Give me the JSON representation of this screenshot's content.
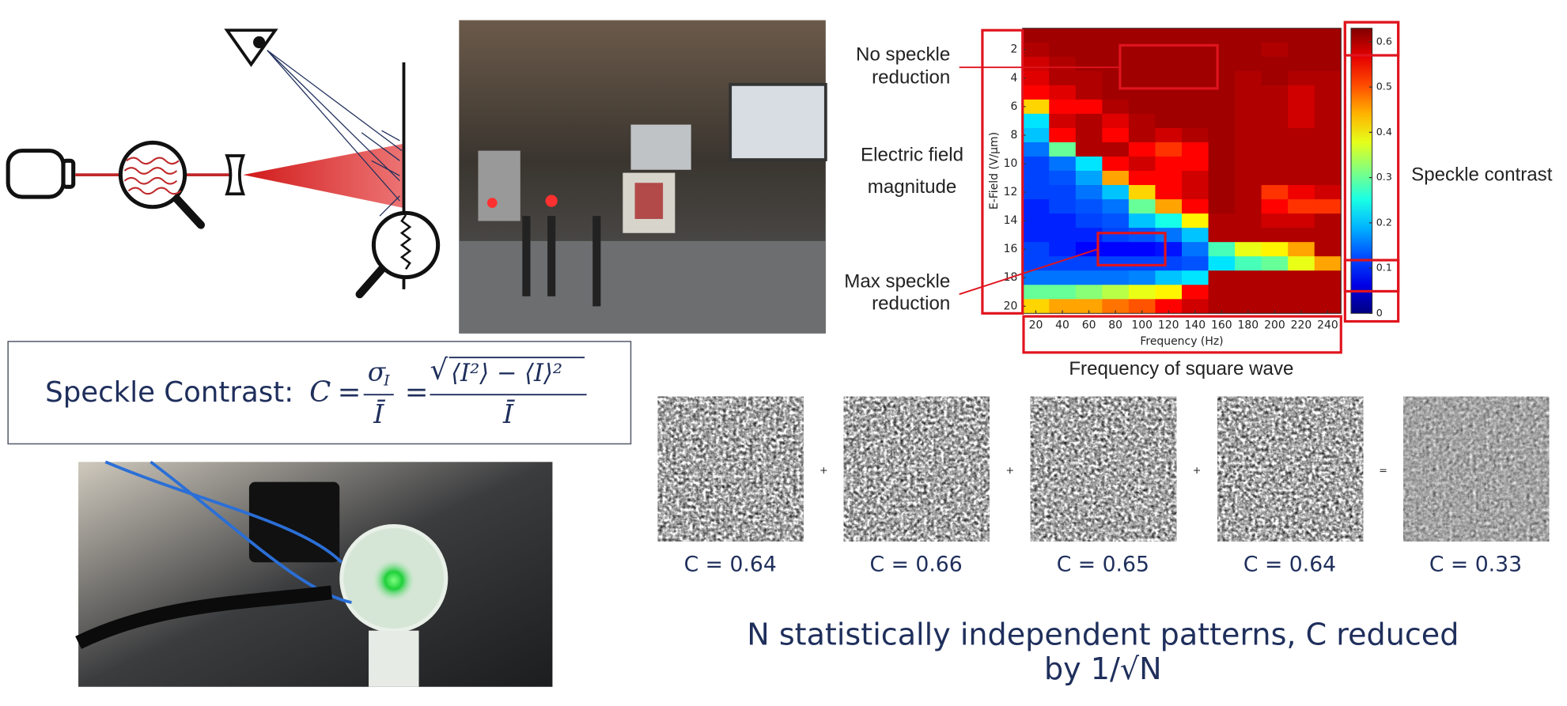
{
  "formula": {
    "label": "Speckle Contrast:",
    "lhs": "C",
    "equals": "=",
    "sigma": "σ",
    "subscript": "I",
    "mean": "Ī",
    "radical": "√",
    "radicand": "⟨I²⟩ − ⟨I⟩²"
  },
  "chart_data": {
    "type": "heatmap",
    "x_label": "Frequency (Hz)",
    "y_label": "E-Field (V/μm)",
    "x": [
      20,
      40,
      60,
      80,
      100,
      120,
      140,
      160,
      180,
      200,
      220,
      240
    ],
    "y": [
      1,
      2,
      3,
      4,
      5,
      6,
      7,
      8,
      9,
      10,
      11,
      12,
      13,
      14,
      15,
      16,
      17,
      18,
      19,
      20
    ],
    "xticks": [
      20,
      40,
      60,
      80,
      100,
      120,
      140,
      160,
      180,
      200,
      220,
      240
    ],
    "yticks": [
      2,
      4,
      6,
      8,
      10,
      12,
      14,
      16,
      18,
      20
    ],
    "values": [
      [
        0.61,
        0.61,
        0.61,
        0.61,
        0.61,
        0.61,
        0.61,
        0.61,
        0.61,
        0.61,
        0.61,
        0.61
      ],
      [
        0.6,
        0.61,
        0.61,
        0.61,
        0.61,
        0.61,
        0.61,
        0.61,
        0.61,
        0.6,
        0.61,
        0.61
      ],
      [
        0.58,
        0.6,
        0.61,
        0.61,
        0.61,
        0.61,
        0.61,
        0.61,
        0.61,
        0.61,
        0.61,
        0.61
      ],
      [
        0.57,
        0.6,
        0.6,
        0.61,
        0.61,
        0.61,
        0.61,
        0.61,
        0.6,
        0.61,
        0.6,
        0.6
      ],
      [
        0.55,
        0.57,
        0.6,
        0.61,
        0.61,
        0.61,
        0.61,
        0.61,
        0.6,
        0.6,
        0.58,
        0.6
      ],
      [
        0.42,
        0.55,
        0.55,
        0.6,
        0.61,
        0.61,
        0.61,
        0.61,
        0.6,
        0.6,
        0.58,
        0.6
      ],
      [
        0.22,
        0.58,
        0.6,
        0.57,
        0.6,
        0.61,
        0.61,
        0.61,
        0.6,
        0.6,
        0.58,
        0.6
      ],
      [
        0.2,
        0.55,
        0.6,
        0.55,
        0.6,
        0.58,
        0.6,
        0.61,
        0.6,
        0.6,
        0.6,
        0.6
      ],
      [
        0.15,
        0.3,
        0.6,
        0.6,
        0.55,
        0.52,
        0.55,
        0.61,
        0.6,
        0.6,
        0.6,
        0.6
      ],
      [
        0.12,
        0.15,
        0.22,
        0.55,
        0.58,
        0.55,
        0.55,
        0.61,
        0.6,
        0.6,
        0.6,
        0.6
      ],
      [
        0.12,
        0.13,
        0.18,
        0.45,
        0.55,
        0.55,
        0.58,
        0.61,
        0.6,
        0.6,
        0.6,
        0.6
      ],
      [
        0.12,
        0.12,
        0.15,
        0.2,
        0.42,
        0.55,
        0.58,
        0.61,
        0.6,
        0.52,
        0.56,
        0.58
      ],
      [
        0.1,
        0.12,
        0.13,
        0.15,
        0.3,
        0.45,
        0.55,
        0.61,
        0.6,
        0.55,
        0.52,
        0.52
      ],
      [
        0.1,
        0.1,
        0.12,
        0.13,
        0.2,
        0.25,
        0.4,
        0.6,
        0.6,
        0.58,
        0.58,
        0.6
      ],
      [
        0.1,
        0.1,
        0.1,
        0.12,
        0.13,
        0.15,
        0.2,
        0.6,
        0.6,
        0.6,
        0.6,
        0.6
      ],
      [
        0.12,
        0.1,
        0.08,
        0.08,
        0.08,
        0.09,
        0.15,
        0.28,
        0.38,
        0.4,
        0.45,
        0.6
      ],
      [
        0.12,
        0.12,
        0.12,
        0.12,
        0.12,
        0.12,
        0.13,
        0.22,
        0.28,
        0.3,
        0.38,
        0.45
      ],
      [
        0.15,
        0.15,
        0.15,
        0.15,
        0.16,
        0.2,
        0.22,
        0.6,
        0.6,
        0.6,
        0.6,
        0.6
      ],
      [
        0.3,
        0.3,
        0.32,
        0.35,
        0.38,
        0.4,
        0.55,
        0.6,
        0.6,
        0.6,
        0.6,
        0.6
      ],
      [
        0.42,
        0.45,
        0.45,
        0.48,
        0.5,
        0.55,
        0.58,
        0.6,
        0.6,
        0.6,
        0.6,
        0.6
      ]
    ],
    "colormap": "jet",
    "clim": [
      0,
      0.63
    ],
    "colorbar_ticks": [
      0,
      0.1,
      0.2,
      0.3,
      0.4,
      0.5,
      0.6
    ],
    "annotations": {
      "no_reduction": [
        "No speckle",
        "reduction"
      ],
      "field": [
        "Electric field",
        "magnitude"
      ],
      "max_reduction": [
        "Max speckle",
        "reduction"
      ],
      "contrast": "Speckle contrast",
      "frequency": "Frequency of square wave"
    }
  },
  "speckle_demo": {
    "labels": [
      "C = 0.64",
      "C = 0.66",
      "C = 0.65",
      "C = 0.64",
      "C = 0.33"
    ],
    "operators": [
      "+",
      "+",
      "+",
      "="
    ],
    "caption": [
      "N statistically independent patterns, C reduced",
      "by 1/√N"
    ]
  }
}
